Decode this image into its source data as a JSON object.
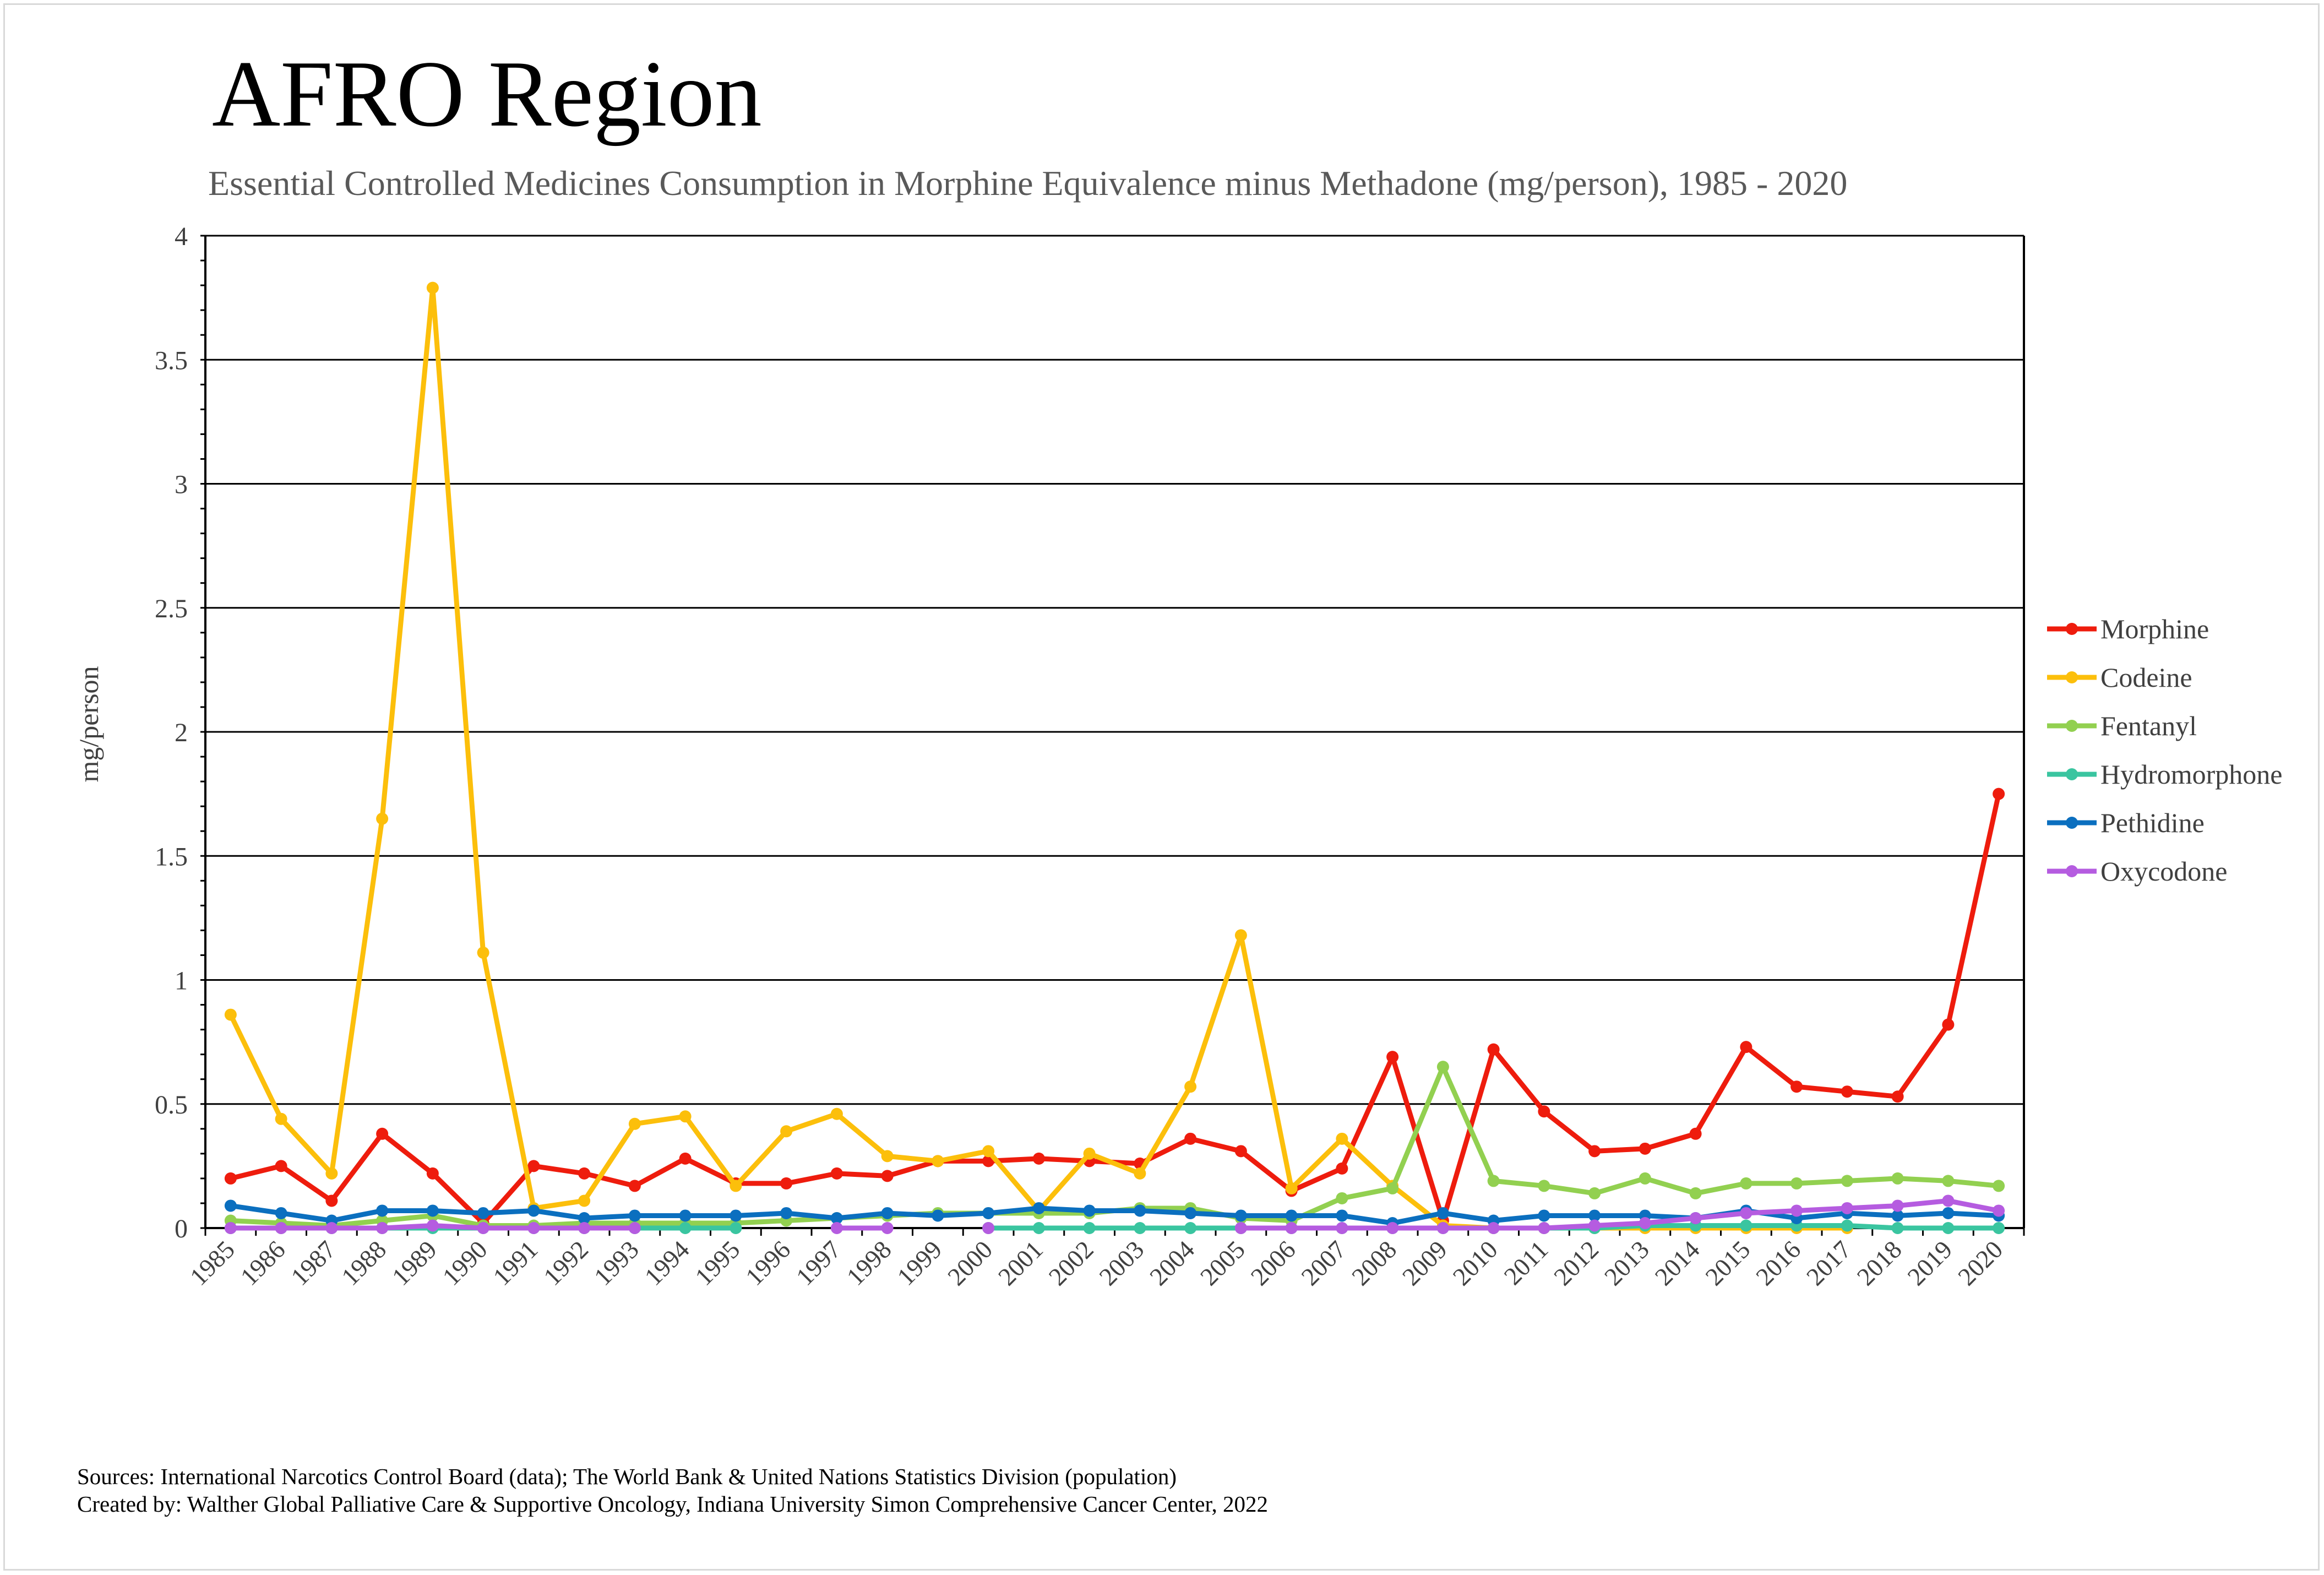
{
  "chart_data": {
    "type": "line",
    "title": "AFRO Region",
    "subtitle": "Essential Controlled Medicines Consumption in Morphine Equivalence minus Methadone (mg/person), 1985 - 2020",
    "xlabel": "",
    "ylabel": "mg/person",
    "ylim": [
      0,
      4
    ],
    "yticks": [
      "0",
      "0.5",
      "1",
      "1.5",
      "2",
      "2.5",
      "3",
      "3.5",
      "4"
    ],
    "grid": true,
    "legend_position": "right",
    "categories": [
      "1985",
      "1986",
      "1987",
      "1988",
      "1989",
      "1990",
      "1991",
      "1992",
      "1993",
      "1994",
      "1995",
      "1996",
      "1997",
      "1998",
      "1999",
      "2000",
      "2001",
      "2002",
      "2003",
      "2004",
      "2005",
      "2006",
      "2007",
      "2008",
      "2009",
      "2010",
      "2011",
      "2012",
      "2013",
      "2014",
      "2015",
      "2016",
      "2017",
      "2018",
      "2019",
      "2020"
    ],
    "series": [
      {
        "name": "Morphine",
        "color": "#ee1c0d",
        "values": [
          0.2,
          0.25,
          0.11,
          0.38,
          0.22,
          0.02,
          0.25,
          0.22,
          0.17,
          0.28,
          0.18,
          0.18,
          0.22,
          0.21,
          0.27,
          0.27,
          0.28,
          0.27,
          0.26,
          0.36,
          0.31,
          0.15,
          0.24,
          0.69,
          0.03,
          0.72,
          0.47,
          0.31,
          0.32,
          0.38,
          0.73,
          0.57,
          0.55,
          0.53,
          0.82,
          1.75
        ]
      },
      {
        "name": "Codeine",
        "color": "#fcbf0b",
        "values": [
          0.86,
          0.44,
          0.22,
          1.65,
          3.79,
          1.11,
          0.08,
          0.11,
          0.42,
          0.45,
          0.17,
          0.39,
          0.46,
          0.29,
          0.27,
          0.31,
          0.07,
          0.3,
          0.22,
          0.57,
          1.18,
          0.16,
          0.36,
          0.17,
          0.01,
          0.0,
          0.0,
          0.0,
          0.0,
          0.0,
          0.0,
          0.0,
          0.0,
          null,
          null,
          null
        ]
      },
      {
        "name": "Fentanyl",
        "color": "#92d050",
        "values": [
          0.03,
          0.02,
          0.01,
          0.03,
          0.05,
          0.01,
          0.01,
          0.02,
          0.02,
          0.02,
          0.02,
          0.03,
          0.04,
          0.05,
          0.06,
          0.06,
          0.06,
          0.06,
          0.08,
          0.08,
          0.04,
          0.03,
          0.12,
          0.16,
          0.65,
          0.19,
          0.17,
          0.14,
          0.2,
          0.14,
          0.18,
          0.18,
          0.19,
          0.2,
          0.19,
          0.17
        ]
      },
      {
        "name": "Hydromorphone",
        "color": "#3ac5a0",
        "values": [
          0.0,
          0.0,
          0.0,
          0.0,
          0.0,
          0.0,
          0.0,
          0.0,
          0.0,
          0.0,
          0.0,
          null,
          null,
          null,
          null,
          0.0,
          0.0,
          0.0,
          0.0,
          0.0,
          0.0,
          0.0,
          0.0,
          0.0,
          0.0,
          0.0,
          0.0,
          0.0,
          0.01,
          0.01,
          0.01,
          0.01,
          0.01,
          0.0,
          0.0,
          0.0
        ]
      },
      {
        "name": "Pethidine",
        "color": "#0b6fbf",
        "values": [
          0.09,
          0.06,
          0.03,
          0.07,
          0.07,
          0.06,
          0.07,
          0.04,
          0.05,
          0.05,
          0.05,
          0.06,
          0.04,
          0.06,
          0.05,
          0.06,
          0.08,
          0.07,
          0.07,
          0.06,
          0.05,
          0.05,
          0.05,
          0.02,
          0.06,
          0.03,
          0.05,
          0.05,
          0.05,
          0.04,
          0.07,
          0.04,
          0.06,
          0.05,
          0.06,
          0.05
        ]
      },
      {
        "name": "Oxycodone",
        "color": "#b55ce0",
        "values": [
          0.0,
          0.0,
          0.0,
          0.0,
          0.01,
          0.0,
          0.0,
          0.0,
          0.0,
          null,
          null,
          null,
          0.0,
          0.0,
          null,
          0.0,
          null,
          null,
          null,
          null,
          0.0,
          0.0,
          0.0,
          0.0,
          0.0,
          0.0,
          0.0,
          0.01,
          0.02,
          0.04,
          0.06,
          0.07,
          0.08,
          0.09,
          0.11,
          0.07
        ]
      }
    ]
  },
  "footer": {
    "sources": "Sources: International Narcotics Control Board (data); The World Bank & United Nations Statistics Division (population)",
    "created_by": "Created by: Walther Global Palliative Care & Supportive Oncology, Indiana University Simon Comprehensive Cancer Center, 2022"
  }
}
